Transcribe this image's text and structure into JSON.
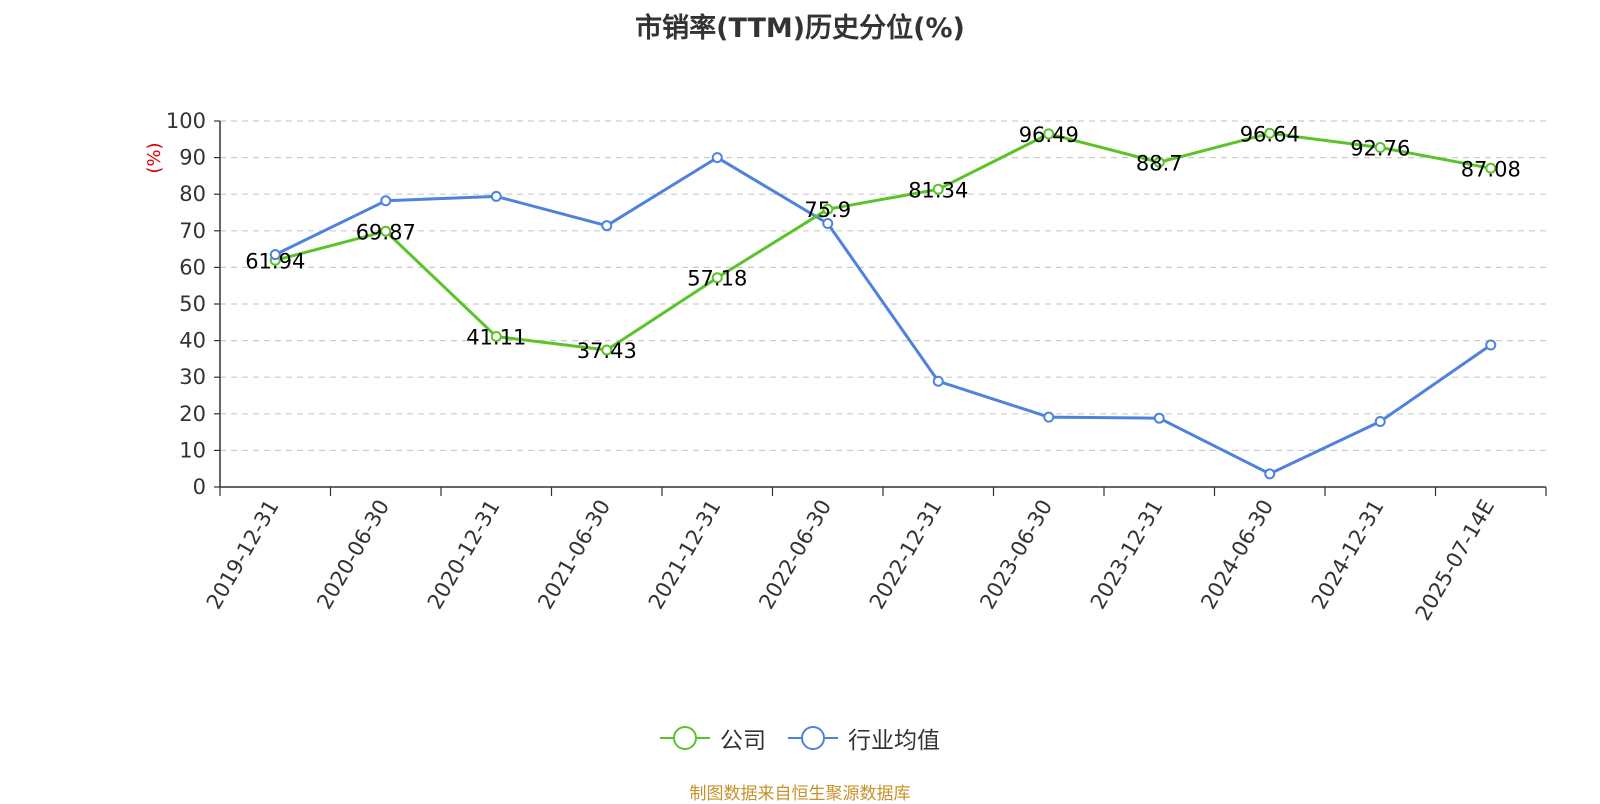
{
  "chart_data": {
    "type": "line",
    "title": "市销率(TTM)历史分位(%)",
    "ylabel": "(%)",
    "xlabel": "",
    "ylim": [
      0,
      100
    ],
    "yticks": [
      0,
      10,
      20,
      30,
      40,
      50,
      60,
      70,
      80,
      90,
      100
    ],
    "grid": true,
    "legend_position": "bottom",
    "categories": [
      "2019-12-31",
      "2020-06-30",
      "2020-12-31",
      "2021-06-30",
      "2021-12-31",
      "2022-06-30",
      "2022-12-31",
      "2023-06-30",
      "2023-12-31",
      "2024-06-30",
      "2024-12-31",
      "2025-07-14E"
    ],
    "series": [
      {
        "name": "公司",
        "color": "#5bc32a",
        "values": [
          61.94,
          69.87,
          41.11,
          37.43,
          57.18,
          75.9,
          81.34,
          96.49,
          88.7,
          96.64,
          92.76,
          87.08
        ],
        "labels": [
          "61.94",
          "69.87",
          "41.11",
          "37.43",
          "57.18",
          "75.9",
          "81.34",
          "96.49",
          "88.7",
          "96.64",
          "92.76",
          "87.08"
        ]
      },
      {
        "name": "行业均值",
        "color": "#4f82dc",
        "values": [
          63.5,
          78.2,
          79.4,
          71.4,
          90.0,
          72.0,
          28.9,
          19.1,
          18.8,
          3.6,
          17.9,
          38.8
        ]
      }
    ],
    "source": "制图数据来自恒生聚源数据库"
  }
}
